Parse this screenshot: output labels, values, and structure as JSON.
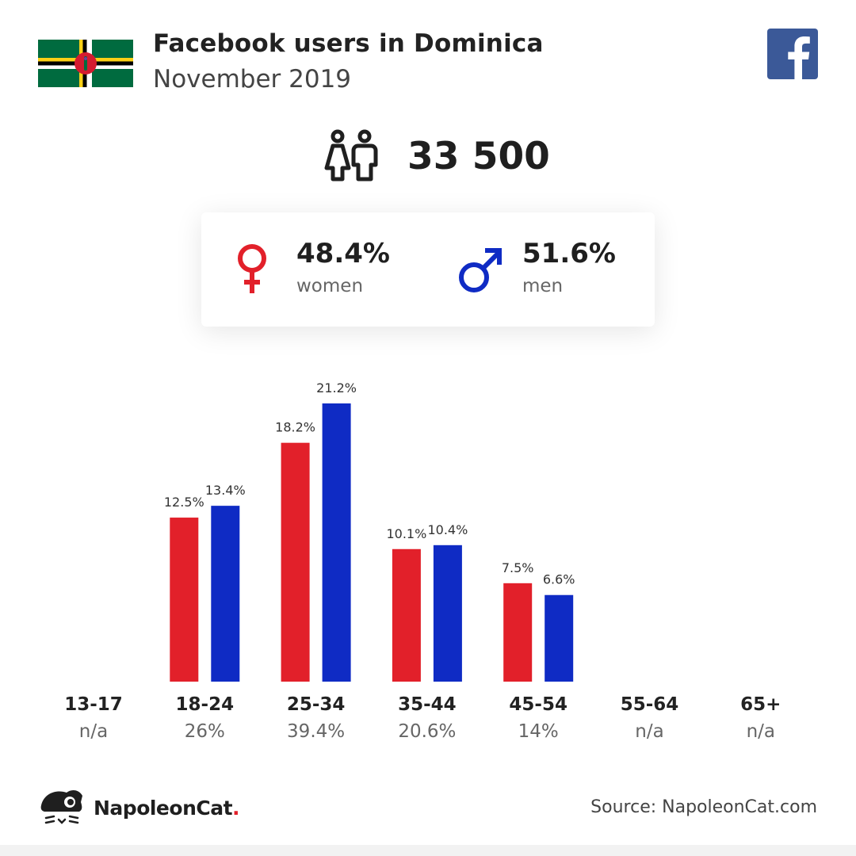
{
  "header": {
    "title": "Facebook users in Dominica",
    "subtitle": "November 2019"
  },
  "summary": {
    "total_users": "33 500",
    "women_pct": "48.4%",
    "women_label": "women",
    "men_pct": "51.6%",
    "men_label": "men"
  },
  "colors": {
    "women": "#e2202a",
    "men": "#0f2bc4",
    "facebook": "#3b5998"
  },
  "icons": {
    "people": "people-icon",
    "female": "female-icon",
    "male": "male-icon",
    "brand": "facebook-logo-icon"
  },
  "chart_data": {
    "type": "bar",
    "categories": [
      "13-17",
      "18-24",
      "25-34",
      "35-44",
      "45-54",
      "55-64",
      "65+"
    ],
    "category_totals": [
      "n/a",
      "26%",
      "39.4%",
      "20.6%",
      "14%",
      "n/a",
      "n/a"
    ],
    "series": [
      {
        "name": "women",
        "values": [
          null,
          12.5,
          18.2,
          10.1,
          7.5,
          null,
          null
        ],
        "labels": [
          "",
          "12.5%",
          "18.2%",
          "10.1%",
          "7.5%",
          "",
          ""
        ]
      },
      {
        "name": "men",
        "values": [
          null,
          13.4,
          21.2,
          10.4,
          6.6,
          null,
          null
        ],
        "labels": [
          "",
          "13.4%",
          "21.2%",
          "10.4%",
          "6.6%",
          "",
          ""
        ]
      }
    ],
    "title": "",
    "xlabel": "",
    "ylabel": "",
    "ylim": [
      0,
      21.2
    ],
    "grid": false,
    "legend": "none"
  },
  "footer": {
    "brand_name": "NapoleonCat",
    "brand_dot": ".",
    "source": "Source: NapoleonCat.com"
  }
}
